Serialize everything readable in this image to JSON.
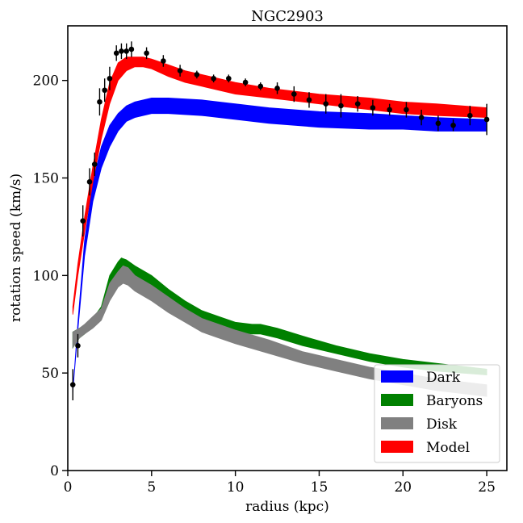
{
  "chart_data": {
    "type": "line",
    "title": "NGC2903",
    "xlabel": "radius (kpc)",
    "ylabel": "rotation speed (km/s)",
    "xlim": [
      0,
      26.2
    ],
    "ylim": [
      0,
      228
    ],
    "xticks": [
      0,
      5,
      10,
      15,
      20,
      25
    ],
    "yticks": [
      0,
      50,
      100,
      150,
      200
    ],
    "legend": {
      "position": "bottom-right",
      "entries": [
        {
          "label": "Dark",
          "color": "#0000ff"
        },
        {
          "label": "Baryons",
          "color": "#008000"
        },
        {
          "label": "Disk",
          "color": "#808080"
        },
        {
          "label": "Model",
          "color": "#ff0000"
        }
      ]
    },
    "bands": [
      {
        "name": "Dark",
        "color": "#0000ff",
        "x": [
          0.3,
          0.6,
          1.0,
          1.5,
          2.0,
          2.5,
          3.0,
          3.5,
          4.0,
          5.0,
          6.0,
          8.0,
          10.0,
          12.0,
          15.0,
          18.0,
          20.0,
          22.0,
          25.0
        ],
        "lower": [
          40,
          72,
          110,
          138,
          155,
          166,
          174,
          179,
          181,
          183,
          183,
          182,
          180,
          178,
          176,
          175,
          175,
          174,
          174
        ],
        "upper": [
          40,
          76,
          118,
          148,
          166,
          177,
          183,
          187,
          189,
          191,
          191,
          190,
          188,
          186,
          184,
          183,
          182,
          181,
          180
        ]
      },
      {
        "name": "Baryons",
        "color": "#008000",
        "x": [
          0.3,
          0.7,
          1.0,
          1.5,
          2.0,
          2.5,
          3.0,
          3.2,
          3.5,
          4.0,
          5.0,
          6.0,
          7.0,
          8.0,
          9.0,
          10.0,
          11.0,
          11.5,
          12.5,
          14.0,
          16.0,
          18.0,
          20.0,
          22.0,
          25.0
        ],
        "lower": [
          63,
          68,
          70,
          74,
          80,
          93,
          102,
          104,
          103,
          99,
          94,
          88,
          82,
          78,
          74,
          71,
          70,
          70,
          68,
          64,
          60,
          56,
          53,
          51,
          49
        ],
        "upper": [
          71,
          73,
          74,
          78,
          84,
          100,
          107,
          109,
          108,
          105,
          100,
          93,
          87,
          82,
          79,
          76,
          75,
          75,
          73,
          69,
          64,
          60,
          57,
          55,
          52
        ]
      },
      {
        "name": "Disk",
        "color": "#808080",
        "x": [
          0.3,
          0.7,
          1.0,
          1.5,
          2.0,
          2.5,
          3.0,
          3.3,
          3.6,
          4.0,
          5.0,
          6.0,
          7.0,
          8.0,
          9.0,
          10.0,
          12.0,
          14.0,
          16.0,
          18.0,
          20.0,
          22.0,
          25.0
        ],
        "lower": [
          63,
          68,
          70,
          73,
          77,
          87,
          94,
          96,
          95,
          92,
          87,
          81,
          76,
          71,
          68,
          65,
          60,
          55,
          51,
          47,
          44,
          41,
          38
        ],
        "upper": [
          71,
          73,
          75,
          79,
          83,
          96,
          102,
          105,
          104,
          100,
          95,
          89,
          83,
          78,
          75,
          72,
          67,
          61,
          57,
          53,
          50,
          47,
          44
        ]
      },
      {
        "name": "Model",
        "color": "#ff0000",
        "x": [
          0.3,
          0.6,
          1.0,
          1.5,
          2.0,
          2.5,
          3.0,
          3.5,
          4.0,
          4.5,
          5.0,
          6.0,
          7.0,
          8.0,
          10.0,
          12.0,
          15.0,
          18.0,
          20.0,
          22.0,
          25.0
        ],
        "lower": [
          80,
          100,
          122,
          148,
          170,
          188,
          200,
          205,
          207,
          207,
          206,
          202,
          199,
          197,
          193,
          191,
          188,
          185,
          183,
          182,
          181
        ],
        "upper": [
          84,
          106,
          130,
          156,
          180,
          199,
          209,
          212,
          212,
          212,
          211,
          208,
          205,
          203,
          199,
          196,
          193,
          191,
          189,
          188,
          186
        ]
      }
    ],
    "observed": {
      "name": "data",
      "color": "#000000",
      "x": [
        0.3,
        0.6,
        0.9,
        1.3,
        1.6,
        1.9,
        2.2,
        2.5,
        2.9,
        3.2,
        3.5,
        3.8,
        4.7,
        5.7,
        6.7,
        7.7,
        8.7,
        9.6,
        10.6,
        11.5,
        12.5,
        13.5,
        14.4,
        15.4,
        16.3,
        17.3,
        18.2,
        19.2,
        20.2,
        21.1,
        22.1,
        23.0,
        24.0,
        25.0
      ],
      "y": [
        44,
        64,
        128,
        148,
        157,
        189,
        195,
        201,
        214,
        215,
        215,
        216,
        214,
        210,
        205,
        203,
        201,
        201,
        199,
        197,
        196,
        193,
        190,
        188,
        187,
        188,
        186,
        185,
        185,
        181,
        178,
        177,
        182,
        180
      ],
      "err": [
        8,
        6,
        8,
        7,
        6,
        7,
        6,
        6,
        4,
        4,
        4,
        4,
        3,
        3,
        3,
        2,
        2,
        2,
        2,
        2,
        3,
        4,
        4,
        5,
        6,
        4,
        4,
        3,
        4,
        4,
        4,
        3,
        5,
        8
      ]
    }
  }
}
